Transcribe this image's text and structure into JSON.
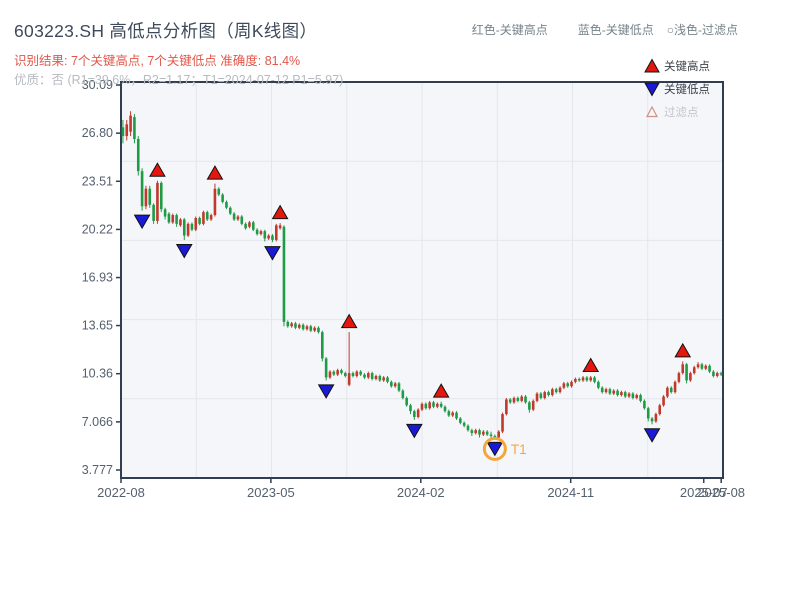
{
  "header": {
    "title": "603223.SH 高低点分析图（周K线图）",
    "result_line": "识别结果: 7个关键高点, 7个关键低点  准确度: 81.4%",
    "quality_line": "优质：否 (R1=39.6%，R2=1.17；T1=2024-07-12 P1=5.97)"
  },
  "top_legend": {
    "high": "红色-关键高点",
    "low": "蓝色-关键低点",
    "filtered": "○浅色-过滤点"
  },
  "legend": {
    "items": [
      {
        "label": "关键高点",
        "marker": "red-up-triangle"
      },
      {
        "label": "关键低点",
        "marker": "blue-down-triangle"
      },
      {
        "label": "过滤点",
        "marker": "hollow-up-triangle"
      }
    ]
  },
  "colors": {
    "candle_up": "#c0392b",
    "candle_down": "#1e9b45",
    "key_high_marker": "#e3170d",
    "key_low_marker": "#1a19d6",
    "marker_edge": "#111111",
    "t1_annotation": "#f5a63b",
    "accent_red_text": "#e2574a",
    "muted_text": "#b7bbc0",
    "axis": "#2f3e52",
    "plot_background": "#f5f6fa",
    "gridline": "#e3e6ed",
    "tick_text": "#55606e",
    "legend_text": "#3c4148",
    "legend_muted_text": "#c3c7cc",
    "filtered_marker_edge": "#c9928a"
  },
  "chart_data": {
    "type": "candlestick",
    "title": "603223.SH 高低点分析图（周K线图）",
    "frequency": "weekly",
    "ylim": [
      3.777,
      30.09
    ],
    "y_ticks": [
      "30.09",
      "26.80",
      "23.51",
      "20.22",
      "16.93",
      "13.65",
      "10.36",
      "7.066",
      "3.777"
    ],
    "x_ticks": [
      {
        "label": "2022-08",
        "pos": 0.0
      },
      {
        "label": "2023-05",
        "pos": 0.249
      },
      {
        "label": "2024-02",
        "pos": 0.498
      },
      {
        "label": "2024-11",
        "pos": 0.747
      },
      {
        "label": "2025-07",
        "pos": 0.968
      },
      {
        "label": "2025-08",
        "pos": 0.997
      }
    ],
    "stats": {
      "key_high_count": 7,
      "key_low_count": 7,
      "accuracy": "81.4%",
      "quality": "否",
      "r1": "39.6%",
      "r2": "1.17",
      "t1_date": "2024-07-12",
      "p1": 5.97
    },
    "candles": [
      [
        27.2,
        27.7,
        26.1,
        26.6
      ],
      [
        26.6,
        27.7,
        26.3,
        27.4
      ],
      [
        26.9,
        28.3,
        26.6,
        28.0
      ],
      [
        27.9,
        28.1,
        26.1,
        26.4
      ],
      [
        26.4,
        26.6,
        23.9,
        24.2
      ],
      [
        24.2,
        24.4,
        21.5,
        21.8
      ],
      [
        21.8,
        23.2,
        21.6,
        23.0
      ],
      [
        23.0,
        23.2,
        21.7,
        21.9
      ],
      [
        21.9,
        22.0,
        20.6,
        20.8
      ],
      [
        20.8,
        23.55,
        20.6,
        23.4
      ],
      [
        23.4,
        23.5,
        21.4,
        21.6
      ],
      [
        21.6,
        21.7,
        20.9,
        21.1
      ],
      [
        21.3,
        21.4,
        20.6,
        20.7
      ],
      [
        20.7,
        21.3,
        20.6,
        21.2
      ],
      [
        21.2,
        21.3,
        20.4,
        20.6
      ],
      [
        20.5,
        21.0,
        20.4,
        20.9
      ],
      [
        20.9,
        21.0,
        19.5,
        19.8
      ],
      [
        19.8,
        20.7,
        19.7,
        20.6
      ],
      [
        20.6,
        20.7,
        20.1,
        20.2
      ],
      [
        20.2,
        21.1,
        20.1,
        21.0
      ],
      [
        21.0,
        21.1,
        20.5,
        20.6
      ],
      [
        20.6,
        21.5,
        20.5,
        21.4
      ],
      [
        21.4,
        21.5,
        20.8,
        20.9
      ],
      [
        20.9,
        21.3,
        20.8,
        21.2
      ],
      [
        21.2,
        23.35,
        21.1,
        23.0
      ],
      [
        23.0,
        23.1,
        22.5,
        22.6
      ],
      [
        22.6,
        22.7,
        22.0,
        22.1
      ],
      [
        22.1,
        22.2,
        21.6,
        21.7
      ],
      [
        21.7,
        21.8,
        21.2,
        21.3
      ],
      [
        21.3,
        21.4,
        20.8,
        20.9
      ],
      [
        20.9,
        21.2,
        20.8,
        21.1
      ],
      [
        21.1,
        21.2,
        20.5,
        20.6
      ],
      [
        20.6,
        20.7,
        20.2,
        20.3
      ],
      [
        20.4,
        20.8,
        20.3,
        20.7
      ],
      [
        20.7,
        20.8,
        20.1,
        20.2
      ],
      [
        20.2,
        20.3,
        19.8,
        19.9
      ],
      [
        19.9,
        20.2,
        19.8,
        20.1
      ],
      [
        20.1,
        20.2,
        19.4,
        19.6
      ],
      [
        19.6,
        19.9,
        19.5,
        19.8
      ],
      [
        19.8,
        19.9,
        19.35,
        19.5
      ],
      [
        19.5,
        20.6,
        19.4,
        20.5
      ],
      [
        20.3,
        20.65,
        20.2,
        20.5
      ],
      [
        20.4,
        20.5,
        13.6,
        13.9
      ],
      [
        13.9,
        14.0,
        13.5,
        13.6
      ],
      [
        13.6,
        13.9,
        13.5,
        13.8
      ],
      [
        13.8,
        13.9,
        13.4,
        13.5
      ],
      [
        13.5,
        13.8,
        13.4,
        13.7
      ],
      [
        13.7,
        13.8,
        13.3,
        13.4
      ],
      [
        13.4,
        13.7,
        13.3,
        13.6
      ],
      [
        13.6,
        13.7,
        13.2,
        13.3
      ],
      [
        13.3,
        13.6,
        13.2,
        13.5
      ],
      [
        13.5,
        13.6,
        13.1,
        13.2
      ],
      [
        13.2,
        13.3,
        11.2,
        11.4
      ],
      [
        11.4,
        11.5,
        9.9,
        10.1
      ],
      [
        10.1,
        10.6,
        10.0,
        10.5
      ],
      [
        10.5,
        10.6,
        10.2,
        10.3
      ],
      [
        10.3,
        10.7,
        10.2,
        10.6
      ],
      [
        10.6,
        10.7,
        10.3,
        10.4
      ],
      [
        10.4,
        10.5,
        10.1,
        10.2
      ],
      [
        9.6,
        13.2,
        9.5,
        10.4
      ],
      [
        10.4,
        10.5,
        10.1,
        10.2
      ],
      [
        10.2,
        10.6,
        10.1,
        10.5
      ],
      [
        10.5,
        10.6,
        10.2,
        10.3
      ],
      [
        10.3,
        10.4,
        10.0,
        10.1
      ],
      [
        10.1,
        10.5,
        10.0,
        10.4
      ],
      [
        10.4,
        10.5,
        9.9,
        10.0
      ],
      [
        10.0,
        10.3,
        9.9,
        10.2
      ],
      [
        10.2,
        10.3,
        9.8,
        9.9
      ],
      [
        9.9,
        10.2,
        9.8,
        10.1
      ],
      [
        10.1,
        10.2,
        9.7,
        9.8
      ],
      [
        9.8,
        9.9,
        9.4,
        9.5
      ],
      [
        9.5,
        9.8,
        9.4,
        9.7
      ],
      [
        9.7,
        9.8,
        9.1,
        9.2
      ],
      [
        9.2,
        9.3,
        8.6,
        8.7
      ],
      [
        8.7,
        8.8,
        8.1,
        8.2
      ],
      [
        8.2,
        8.3,
        7.6,
        7.8
      ],
      [
        7.8,
        7.9,
        7.2,
        7.4
      ],
      [
        7.4,
        8.0,
        7.3,
        7.9
      ],
      [
        7.9,
        8.4,
        7.8,
        8.3
      ],
      [
        8.3,
        8.4,
        7.9,
        8.0
      ],
      [
        8.0,
        8.5,
        7.9,
        8.4
      ],
      [
        8.4,
        8.5,
        8.0,
        8.1
      ],
      [
        8.1,
        8.4,
        8.0,
        8.3
      ],
      [
        8.3,
        8.45,
        8.0,
        8.1
      ],
      [
        8.1,
        8.2,
        7.7,
        7.8
      ],
      [
        7.8,
        7.9,
        7.4,
        7.5
      ],
      [
        7.5,
        7.8,
        7.4,
        7.7
      ],
      [
        7.7,
        7.8,
        7.2,
        7.3
      ],
      [
        7.3,
        7.4,
        6.9,
        7.0
      ],
      [
        7.0,
        7.1,
        6.7,
        6.8
      ],
      [
        6.8,
        6.9,
        6.4,
        6.5
      ],
      [
        6.5,
        6.6,
        6.1,
        6.3
      ],
      [
        6.3,
        6.6,
        6.2,
        6.5
      ],
      [
        6.5,
        6.6,
        6.0,
        6.2
      ],
      [
        6.2,
        6.5,
        6.1,
        6.4
      ],
      [
        6.4,
        6.5,
        6.1,
        6.2
      ],
      [
        6.2,
        6.4,
        6.0,
        6.1
      ],
      [
        6.1,
        6.2,
        5.97,
        6.0
      ],
      [
        6.0,
        6.5,
        5.98,
        6.4
      ],
      [
        6.4,
        7.7,
        6.3,
        7.6
      ],
      [
        7.6,
        8.7,
        7.5,
        8.6
      ],
      [
        8.6,
        8.7,
        8.3,
        8.4
      ],
      [
        8.4,
        8.8,
        8.3,
        8.7
      ],
      [
        8.7,
        8.8,
        8.4,
        8.5
      ],
      [
        8.5,
        8.9,
        8.4,
        8.8
      ],
      [
        8.8,
        8.9,
        8.3,
        8.4
      ],
      [
        8.4,
        8.5,
        7.7,
        7.9
      ],
      [
        7.9,
        8.6,
        7.8,
        8.5
      ],
      [
        8.5,
        9.1,
        8.4,
        9.0
      ],
      [
        9.0,
        9.1,
        8.6,
        8.7
      ],
      [
        8.7,
        9.2,
        8.6,
        9.1
      ],
      [
        9.1,
        9.2,
        8.8,
        8.9
      ],
      [
        8.9,
        9.4,
        8.8,
        9.3
      ],
      [
        9.3,
        9.4,
        9.0,
        9.1
      ],
      [
        9.1,
        9.5,
        9.0,
        9.4
      ],
      [
        9.4,
        9.8,
        9.3,
        9.7
      ],
      [
        9.7,
        9.8,
        9.4,
        9.5
      ],
      [
        9.5,
        9.9,
        9.4,
        9.8
      ],
      [
        9.8,
        10.1,
        9.7,
        10.0
      ],
      [
        10.0,
        10.1,
        9.8,
        9.9
      ],
      [
        9.9,
        10.2,
        9.8,
        10.1
      ],
      [
        10.1,
        10.2,
        9.8,
        9.9
      ],
      [
        9.9,
        10.2,
        9.8,
        10.1
      ],
      [
        10.1,
        10.2,
        9.7,
        9.8
      ],
      [
        9.8,
        9.9,
        9.3,
        9.4
      ],
      [
        9.4,
        9.5,
        9.0,
        9.1
      ],
      [
        9.1,
        9.4,
        9.0,
        9.3
      ],
      [
        9.3,
        9.4,
        8.9,
        9.0
      ],
      [
        9.0,
        9.3,
        8.9,
        9.2
      ],
      [
        9.2,
        9.3,
        8.8,
        8.9
      ],
      [
        8.9,
        9.2,
        8.8,
        9.1
      ],
      [
        9.1,
        9.2,
        8.7,
        8.8
      ],
      [
        8.8,
        9.1,
        8.7,
        9.0
      ],
      [
        9.0,
        9.1,
        8.6,
        8.7
      ],
      [
        8.7,
        9.0,
        8.6,
        8.9
      ],
      [
        8.9,
        9.0,
        8.4,
        8.5
      ],
      [
        8.5,
        8.6,
        7.9,
        8.0
      ],
      [
        8.0,
        8.1,
        7.1,
        7.3
      ],
      [
        7.3,
        7.4,
        6.9,
        7.1
      ],
      [
        7.1,
        7.7,
        7.0,
        7.6
      ],
      [
        7.6,
        8.3,
        7.5,
        8.2
      ],
      [
        8.2,
        8.9,
        8.1,
        8.8
      ],
      [
        8.8,
        9.5,
        8.7,
        9.4
      ],
      [
        9.4,
        9.5,
        9.0,
        9.1
      ],
      [
        9.1,
        9.9,
        9.0,
        9.8
      ],
      [
        9.8,
        10.5,
        9.7,
        10.4
      ],
      [
        10.4,
        11.2,
        10.3,
        11.0
      ],
      [
        11.0,
        11.1,
        9.7,
        9.9
      ],
      [
        9.9,
        10.5,
        9.8,
        10.4
      ],
      [
        10.4,
        10.9,
        10.3,
        10.8
      ],
      [
        10.8,
        11.15,
        10.7,
        11.0
      ],
      [
        11.0,
        11.1,
        10.6,
        10.7
      ],
      [
        10.7,
        11.0,
        10.6,
        10.9
      ],
      [
        10.9,
        11.0,
        10.4,
        10.5
      ],
      [
        10.5,
        10.6,
        10.1,
        10.2
      ],
      [
        10.2,
        10.5,
        10.1,
        10.4
      ],
      [
        10.4,
        10.5,
        10.2,
        10.3
      ]
    ],
    "markers": {
      "key_highs": [
        {
          "index": 9,
          "price": 23.55
        },
        {
          "index": 24,
          "price": 23.35
        },
        {
          "index": 41,
          "price": 20.65
        },
        {
          "index": 59,
          "price": 13.2
        },
        {
          "index": 83,
          "price": 8.45
        },
        {
          "index": 122,
          "price": 10.2
        },
        {
          "index": 146,
          "price": 11.2
        }
      ],
      "key_lows": [
        {
          "index": 5,
          "price": 21.5
        },
        {
          "index": 16,
          "price": 19.5
        },
        {
          "index": 39,
          "price": 19.35
        },
        {
          "index": 53,
          "price": 9.9
        },
        {
          "index": 76,
          "price": 7.2
        },
        {
          "index": 97,
          "price": 5.97
        },
        {
          "index": 138,
          "price": 6.9
        }
      ],
      "t1": {
        "index": 97,
        "label": "T1",
        "date": "2024-07-12",
        "price": 5.97
      }
    }
  }
}
